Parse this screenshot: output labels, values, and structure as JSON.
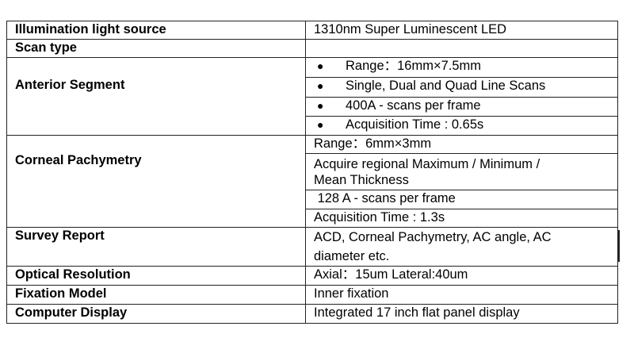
{
  "rows": {
    "illumination": {
      "label": "Illumination  light source",
      "value": "1310nm Super Luminescent LED"
    },
    "scan_type": {
      "label": "Scan type",
      "value": ""
    },
    "anterior": {
      "label": "Anterior  Segment",
      "bullet": "●",
      "items": [
        "Range：16mm×7.5mm",
        "Single, Dual and Quad Line Scans",
        "400A - scans per frame",
        "Acquisition Time : 0.65s"
      ]
    },
    "corneal": {
      "label": "Corneal Pachymetry",
      "items": [
        "Range：6mm×3mm",
        "Acquire regional Maximum / Minimum /",
        "Mean Thickness",
        " 128 A - scans per frame",
        "Acquisition  Time : 1.3s"
      ]
    },
    "survey": {
      "label": "Survey Report",
      "line1": "ACD, Corneal Pachymetry, AC angle,  AC",
      "line2": "diameter etc."
    },
    "optical": {
      "label": "Optical Resolution",
      "value": "Axial：15um  Lateral:40um"
    },
    "fixation": {
      "label": "Fixation Model",
      "value": "Inner fixation"
    },
    "display": {
      "label": "Computer Display",
      "value": "Integrated 17 inch flat panel display"
    }
  }
}
